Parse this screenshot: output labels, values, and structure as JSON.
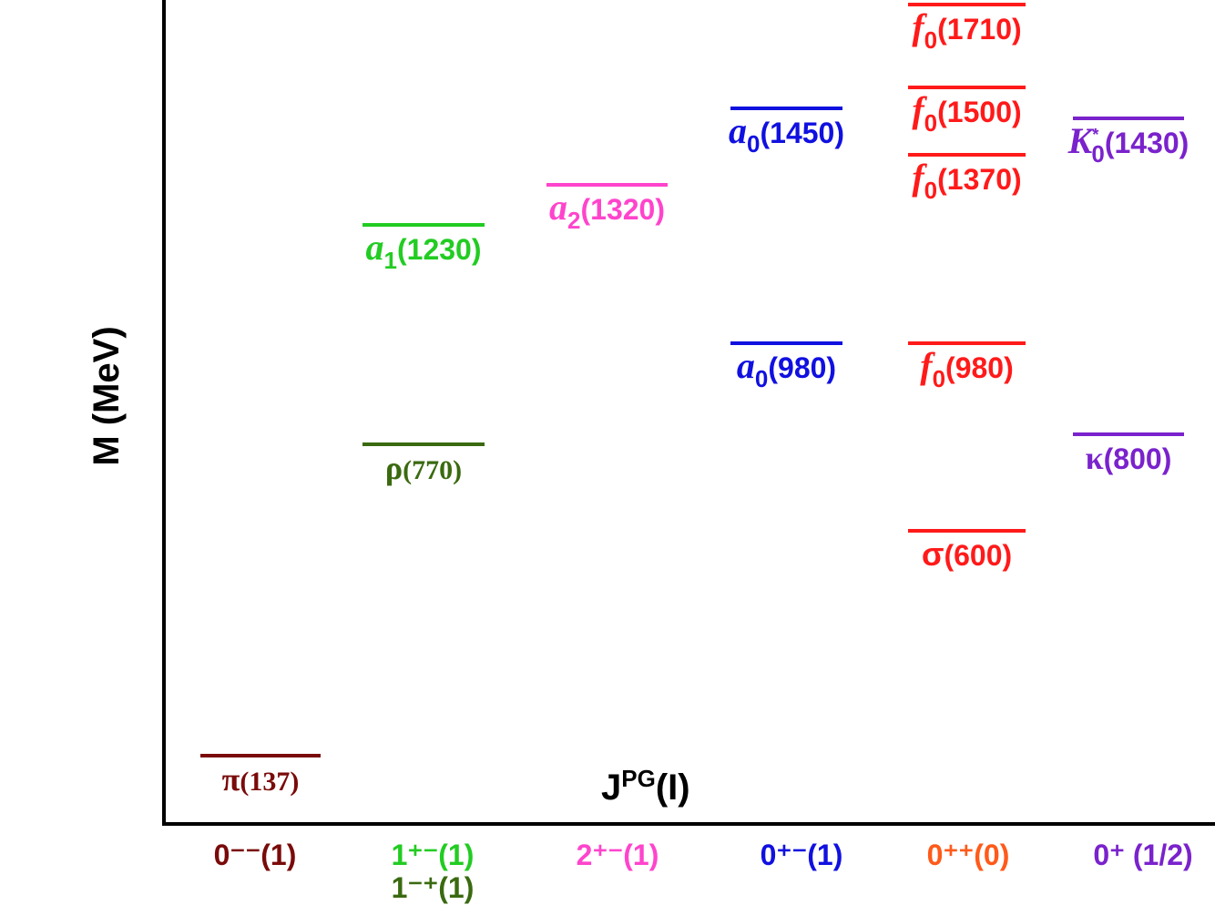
{
  "y_axis_label": "M (MeV)",
  "x_axis_label": {
    "base": "J",
    "sup": "PG",
    "tail": "(I)"
  },
  "columns": [
    {
      "labels": [
        {
          "text": "0⁻⁻(1)",
          "color": "#7a0a0a"
        }
      ],
      "levels": [
        {
          "name": "π",
          "tail": "(137)",
          "color": "#7a0a0a"
        }
      ]
    },
    {
      "labels": [
        {
          "text": "1⁺⁻(1)",
          "color": "#22cc22"
        },
        {
          "text": "1⁻⁺(1)",
          "color": "#3a6a10"
        }
      ],
      "levels": [
        {
          "name": "a",
          "sub": "1",
          "tail": "(1230)",
          "color": "#22cc22"
        },
        {
          "name": "ρ",
          "tail": "(770)",
          "color": "#3a6a10"
        }
      ]
    },
    {
      "labels": [
        {
          "text": "2⁺⁻(1)",
          "color": "#ff44cc"
        }
      ],
      "levels": [
        {
          "name": "a",
          "sub": "2",
          "tail": "(1320)",
          "color": "#ff44cc"
        }
      ]
    },
    {
      "labels": [
        {
          "text": "0⁺⁻(1)",
          "color": "#1010e0"
        }
      ],
      "levels": [
        {
          "name": "a",
          "sub": "0",
          "tail": "(1450)",
          "color": "#1010e0"
        },
        {
          "name": "a",
          "sub": "0",
          "tail": "(980)",
          "color": "#1010e0"
        }
      ]
    },
    {
      "labels": [
        {
          "text": "0⁺⁺(0)",
          "color": "#ff5a1a"
        }
      ],
      "levels": [
        {
          "name": "f",
          "sub": "0",
          "tail": "(1710)",
          "color": "#ff1a1a"
        },
        {
          "name": "f",
          "sub": "0",
          "tail": "(1500)",
          "color": "#ff1a1a"
        },
        {
          "name": "f",
          "sub": "0",
          "tail": "(1370)",
          "color": "#ff1a1a"
        },
        {
          "name": "f",
          "sub": "0",
          "tail": "(980)",
          "color": "#ff1a1a"
        },
        {
          "name": "σ",
          "tail": "(600)",
          "color": "#ff1a1a"
        }
      ]
    },
    {
      "labels": [
        {
          "text": "0⁺ (1/2)",
          "color": "#7a22cc"
        }
      ],
      "levels": [
        {
          "name": "K",
          "sub": "0",
          "sup": "*",
          "tail": "(1430)",
          "color": "#7a22cc"
        },
        {
          "name": "κ",
          "tail": "(800)",
          "color": "#7a22cc"
        }
      ]
    }
  ]
}
